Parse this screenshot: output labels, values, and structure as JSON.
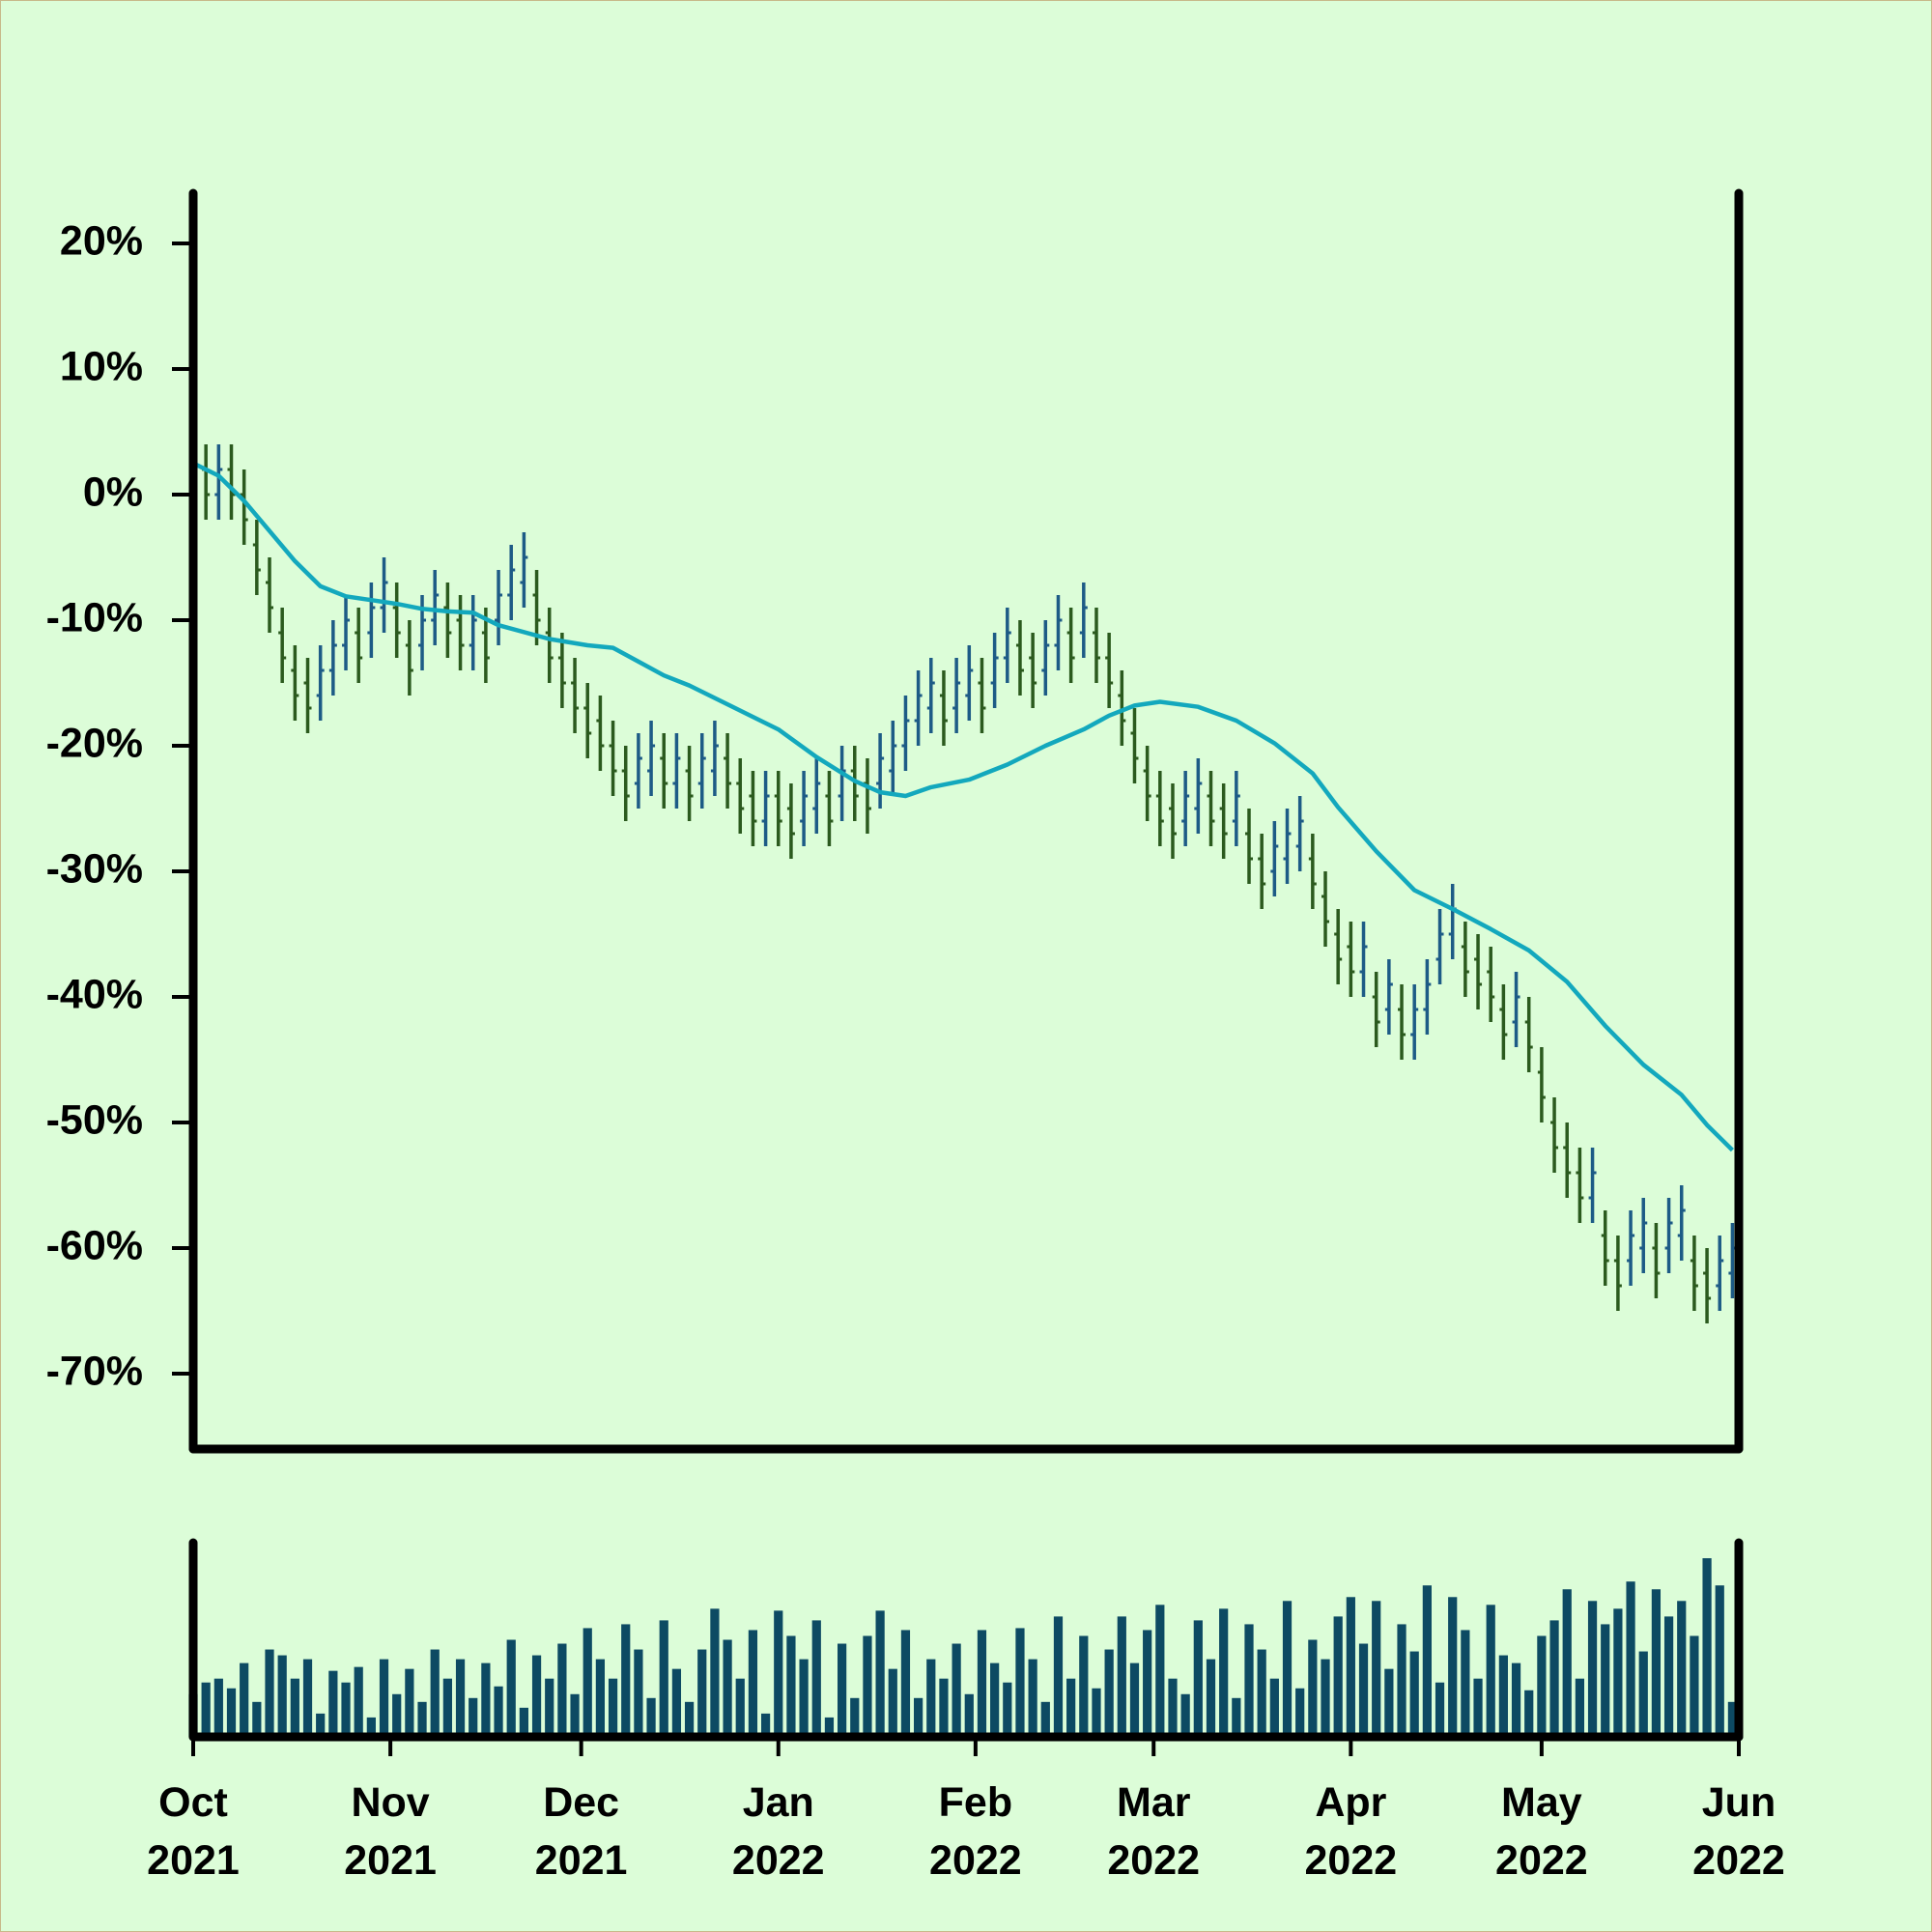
{
  "chart_data": {
    "type": "ohlc",
    "x": [
      0,
      2,
      4,
      6,
      8,
      10,
      12,
      14,
      16,
      18,
      20,
      22,
      24,
      26,
      28,
      30,
      32,
      34,
      36,
      38,
      40,
      42,
      44,
      46,
      48,
      50,
      52,
      54,
      56,
      58,
      60,
      62,
      64,
      66,
      68,
      70,
      72,
      74,
      76,
      78,
      80,
      82,
      84,
      86,
      88,
      90,
      92,
      94,
      96,
      98,
      100,
      102,
      104,
      106,
      108,
      110,
      112,
      114,
      116,
      118,
      120,
      122,
      124,
      126,
      128,
      130,
      132,
      134,
      136,
      138,
      140,
      142,
      144,
      146,
      148,
      150,
      152,
      154,
      156,
      158,
      160,
      162,
      164,
      166,
      168,
      170,
      172,
      174,
      176,
      178,
      180,
      182,
      184,
      186,
      188,
      190,
      192,
      194,
      196,
      198,
      200,
      202,
      204,
      206,
      208,
      210,
      212,
      214,
      216,
      218,
      220,
      222,
      224,
      226,
      228,
      230,
      232,
      234,
      236,
      238,
      240,
      242
    ],
    "open": [
      1,
      2,
      0,
      2,
      0,
      -4,
      -7,
      -11,
      -14,
      -15,
      -16,
      -14,
      -12,
      -11,
      -11,
      -9,
      -9,
      -12,
      -12,
      -10,
      -9,
      -10,
      -12,
      -11,
      -10,
      -8,
      -7,
      -8,
      -11,
      -13,
      -15,
      -17,
      -18,
      -20,
      -22,
      -23,
      -22,
      -21,
      -23,
      -22,
      -23,
      -22,
      -21,
      -23,
      -24,
      -26,
      -24,
      -25,
      -26,
      -25,
      -24,
      -24,
      -22,
      -23,
      -23,
      -22,
      -20,
      -18,
      -17,
      -16,
      -17,
      -16,
      -15,
      -15,
      -13,
      -12,
      -13,
      -14,
      -12,
      -11,
      -11,
      -11,
      -13,
      -16,
      -19,
      -22,
      -24,
      -25,
      -26,
      -25,
      -24,
      -25,
      -26,
      -27,
      -29,
      -30,
      -29,
      -28,
      -29,
      -32,
      -35,
      -36,
      -38,
      -40,
      -41,
      -41,
      -43,
      -41,
      -37,
      -35,
      -36,
      -37,
      -38,
      -41,
      -42,
      -42,
      -46,
      -50,
      -52,
      -54,
      -56,
      -59,
      -61,
      -61,
      -60,
      -60,
      -60,
      -59,
      -61,
      -62,
      -63,
      -62
    ],
    "high": [
      5,
      4,
      4,
      4,
      2,
      -2,
      -5,
      -9,
      -12,
      -13,
      -12,
      -10,
      -8,
      -9,
      -7,
      -5,
      -7,
      -10,
      -8,
      -6,
      -7,
      -8,
      -8,
      -9,
      -6,
      -4,
      -3,
      -6,
      -9,
      -11,
      -13,
      -15,
      -16,
      -18,
      -20,
      -19,
      -18,
      -19,
      -19,
      -20,
      -19,
      -18,
      -19,
      -21,
      -22,
      -22,
      -22,
      -23,
      -22,
      -21,
      -22,
      -20,
      -20,
      -21,
      -19,
      -18,
      -16,
      -14,
      -13,
      -14,
      -13,
      -12,
      -13,
      -11,
      -9,
      -10,
      -11,
      -10,
      -8,
      -9,
      -7,
      -9,
      -11,
      -14,
      -17,
      -20,
      -22,
      -23,
      -22,
      -21,
      -22,
      -23,
      -22,
      -25,
      -27,
      -26,
      -25,
      -24,
      -27,
      -30,
      -33,
      -34,
      -34,
      -38,
      -37,
      -39,
      -39,
      -37,
      -33,
      -31,
      -34,
      -35,
      -36,
      -39,
      -38,
      -40,
      -44,
      -48,
      -50,
      -52,
      -52,
      -57,
      -59,
      -57,
      -56,
      -58,
      -56,
      -55,
      -59,
      -60,
      -59,
      -58
    ],
    "low": [
      -1,
      -2,
      -2,
      -2,
      -4,
      -8,
      -11,
      -15,
      -18,
      -19,
      -18,
      -16,
      -14,
      -15,
      -13,
      -11,
      -13,
      -16,
      -14,
      -12,
      -13,
      -14,
      -14,
      -15,
      -12,
      -10,
      -9,
      -12,
      -15,
      -17,
      -19,
      -21,
      -22,
      -24,
      -26,
      -25,
      -24,
      -25,
      -25,
      -26,
      -25,
      -24,
      -25,
      -27,
      -28,
      -28,
      -28,
      -29,
      -28,
      -27,
      -28,
      -26,
      -26,
      -27,
      -25,
      -24,
      -22,
      -20,
      -19,
      -20,
      -19,
      -18,
      -19,
      -17,
      -15,
      -16,
      -17,
      -16,
      -14,
      -15,
      -13,
      -15,
      -17,
      -20,
      -23,
      -26,
      -28,
      -29,
      -28,
      -27,
      -28,
      -29,
      -28,
      -31,
      -33,
      -32,
      -31,
      -30,
      -33,
      -36,
      -39,
      -40,
      -40,
      -44,
      -43,
      -45,
      -45,
      -43,
      -39,
      -37,
      -40,
      -41,
      -42,
      -45,
      -44,
      -46,
      -50,
      -54,
      -56,
      -58,
      -58,
      -63,
      -65,
      -63,
      -62,
      -64,
      -62,
      -61,
      -65,
      -66,
      -65,
      -64
    ],
    "close": [
      3,
      0,
      2,
      0,
      -2,
      -6,
      -9,
      -13,
      -16,
      -17,
      -14,
      -12,
      -10,
      -13,
      -9,
      -7,
      -11,
      -14,
      -10,
      -8,
      -11,
      -12,
      -10,
      -13,
      -8,
      -6,
      -5,
      -10,
      -13,
      -15,
      -17,
      -19,
      -20,
      -22,
      -24,
      -21,
      -20,
      -23,
      -21,
      -24,
      -21,
      -20,
      -23,
      -25,
      -26,
      -24,
      -26,
      -27,
      -24,
      -23,
      -26,
      -22,
      -24,
      -25,
      -21,
      -20,
      -18,
      -16,
      -15,
      -18,
      -15,
      -14,
      -17,
      -13,
      -11,
      -14,
      -15,
      -12,
      -10,
      -13,
      -9,
      -13,
      -15,
      -18,
      -21,
      -24,
      -26,
      -27,
      -24,
      -23,
      -26,
      -27,
      -24,
      -29,
      -31,
      -28,
      -27,
      -26,
      -31,
      -34,
      -37,
      -38,
      -36,
      -42,
      -39,
      -43,
      -41,
      -39,
      -35,
      -33,
      -38,
      -39,
      -40,
      -43,
      -40,
      -44,
      -48,
      -52,
      -54,
      -56,
      -54,
      -61,
      -63,
      -59,
      -58,
      -62,
      -58,
      -57,
      -63,
      -64,
      -61,
      -60
    ],
    "up_color": "#1d5b86",
    "down_color": "#2b5a1e",
    "moving_average": {
      "color": "#13a8bd",
      "x": [
        0,
        4,
        8,
        16,
        20,
        24,
        28,
        32,
        36,
        40,
        44,
        48,
        56,
        62,
        66,
        70,
        74,
        78,
        86,
        92,
        98,
        104,
        108,
        112,
        116,
        122,
        128,
        134,
        140,
        144,
        148,
        152,
        158,
        164,
        170,
        176,
        180,
        186,
        192,
        198,
        204,
        210,
        216,
        222,
        228,
        234,
        238,
        242
      ],
      "values": [
        2.5,
        1.5,
        -0.5,
        -5.3,
        -7.3,
        -8.1,
        -8.4,
        -8.7,
        -9.1,
        -9.3,
        -9.4,
        -10.4,
        -11.5,
        -12,
        -12.2,
        -13.3,
        -14.4,
        -15.2,
        -17.2,
        -18.7,
        -20.9,
        -22.8,
        -23.7,
        -24,
        -23.3,
        -22.7,
        -21.5,
        -20,
        -18.7,
        -17.6,
        -16.8,
        -16.5,
        -16.9,
        -18,
        -19.8,
        -22.2,
        -24.9,
        -28.4,
        -31.5,
        -33,
        -34.6,
        -36.3,
        -38.8,
        -42.3,
        -45.4,
        -47.8,
        -50.2,
        -52.2
      ]
    },
    "volume": {
      "color": "#0d4a63",
      "ylim": [
        0,
        100
      ],
      "values": [
        22,
        28,
        30,
        25,
        38,
        18,
        45,
        42,
        30,
        40,
        12,
        34,
        28,
        36,
        10,
        40,
        22,
        35,
        18,
        45,
        30,
        40,
        20,
        38,
        26,
        50,
        15,
        42,
        30,
        48,
        22,
        56,
        40,
        30,
        58,
        45,
        20,
        60,
        35,
        18,
        45,
        66,
        50,
        30,
        55,
        12,
        65,
        52,
        40,
        60,
        10,
        48,
        20,
        52,
        65,
        35,
        55,
        20,
        40,
        30,
        48,
        22,
        55,
        38,
        28,
        56,
        40,
        18,
        62,
        30,
        52,
        25,
        45,
        62,
        38,
        55,
        68,
        30,
        22,
        60,
        40,
        66,
        20,
        58,
        45,
        30,
        70,
        25,
        50,
        40,
        62,
        72,
        48,
        70,
        35,
        58,
        44,
        78,
        28,
        72,
        55,
        30,
        68,
        42,
        38,
        24,
        52,
        60,
        76,
        30,
        70,
        58,
        66,
        80,
        44,
        76,
        62,
        70,
        52,
        92,
        78,
        18
      ],
      "ylim_note_free": null
    },
    "xlim": [
      0,
      243
    ],
    "xticks": [
      {
        "value": 0,
        "label": "Oct\n2021"
      },
      {
        "value": 31,
        "label": "Nov\n2021"
      },
      {
        "value": 61,
        "label": "Dec\n2021"
      },
      {
        "value": 92,
        "label": "Jan\n2022"
      },
      {
        "value": 123,
        "label": "Feb\n2022"
      },
      {
        "value": 151,
        "label": "Mar\n2022"
      },
      {
        "value": 182,
        "label": "Apr\n2022"
      },
      {
        "value": 212,
        "label": "May\n2022"
      },
      {
        "value": 243,
        "label": "Jun\n2022"
      }
    ],
    "ylim": [
      -76,
      24
    ],
    "yticks": [
      {
        "value": 20,
        "label": "20%"
      },
      {
        "value": 10,
        "label": "10%"
      },
      {
        "value": 0,
        "label": "0%"
      },
      {
        "value": -10,
        "label": "-10%"
      },
      {
        "value": -20,
        "label": "-20%"
      },
      {
        "value": -30,
        "label": "-30%"
      },
      {
        "value": -40,
        "label": "-40%"
      },
      {
        "value": -50,
        "label": "-50%"
      },
      {
        "value": -60,
        "label": "-60%"
      },
      {
        "value": -70,
        "label": "-70%"
      }
    ]
  }
}
